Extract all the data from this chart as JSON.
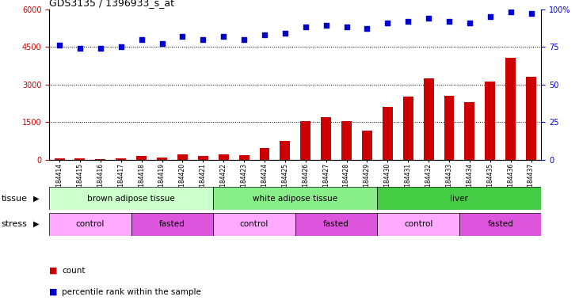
{
  "title": "GDS3135 / 1396933_s_at",
  "samples": [
    "GSM184414",
    "GSM184415",
    "GSM184416",
    "GSM184417",
    "GSM184418",
    "GSM184419",
    "GSM184420",
    "GSM184421",
    "GSM184422",
    "GSM184423",
    "GSM184424",
    "GSM184425",
    "GSM184426",
    "GSM184427",
    "GSM184428",
    "GSM184429",
    "GSM184430",
    "GSM184431",
    "GSM184432",
    "GSM184433",
    "GSM184434",
    "GSM184435",
    "GSM184436",
    "GSM184437"
  ],
  "counts": [
    55,
    40,
    30,
    40,
    160,
    90,
    200,
    130,
    220,
    170,
    460,
    750,
    1520,
    1680,
    1520,
    1170,
    2100,
    2500,
    3250,
    2550,
    2300,
    3100,
    4050,
    3300
  ],
  "percentile": [
    76,
    74,
    74,
    75,
    80,
    77,
    82,
    80,
    82,
    80,
    83,
    84,
    88,
    89,
    88,
    87,
    91,
    92,
    94,
    92,
    91,
    95,
    98,
    97
  ],
  "bar_color": "#cc0000",
  "dot_color": "#0000cc",
  "ylim_left": [
    0,
    6000
  ],
  "ylim_right": [
    0,
    100
  ],
  "yticks_left": [
    0,
    1500,
    3000,
    4500,
    6000
  ],
  "yticks_right": [
    0,
    25,
    50,
    75,
    100
  ],
  "ytick_labels_right": [
    "0",
    "25",
    "50",
    "75",
    "100%"
  ],
  "grid_lines": [
    1500,
    3000,
    4500
  ],
  "tissue_groups": [
    {
      "label": "brown adipose tissue",
      "start": 0,
      "end": 8,
      "color": "#ccffcc"
    },
    {
      "label": "white adipose tissue",
      "start": 8,
      "end": 16,
      "color": "#88ee88"
    },
    {
      "label": "liver",
      "start": 16,
      "end": 24,
      "color": "#44cc44"
    }
  ],
  "stress_groups": [
    {
      "label": "control",
      "start": 0,
      "end": 4,
      "color": "#ffaaff"
    },
    {
      "label": "fasted",
      "start": 4,
      "end": 8,
      "color": "#dd55dd"
    },
    {
      "label": "control",
      "start": 8,
      "end": 12,
      "color": "#ffaaff"
    },
    {
      "label": "fasted",
      "start": 12,
      "end": 16,
      "color": "#dd55dd"
    },
    {
      "label": "control",
      "start": 16,
      "end": 20,
      "color": "#ffaaff"
    },
    {
      "label": "fasted",
      "start": 20,
      "end": 24,
      "color": "#dd55dd"
    }
  ],
  "legend_count_color": "#cc0000",
  "legend_dot_color": "#0000cc",
  "tissue_label": "tissue",
  "stress_label": "stress",
  "bg_color": "#ffffff",
  "tick_label_color_left": "#cc0000",
  "tick_label_color_right": "#0000cc",
  "bar_width": 0.5,
  "dot_size": 16,
  "title_fontsize": 9,
  "tick_fontsize": 7,
  "label_fontsize": 8,
  "row_fontsize": 7.5,
  "legend_fontsize": 7.5
}
